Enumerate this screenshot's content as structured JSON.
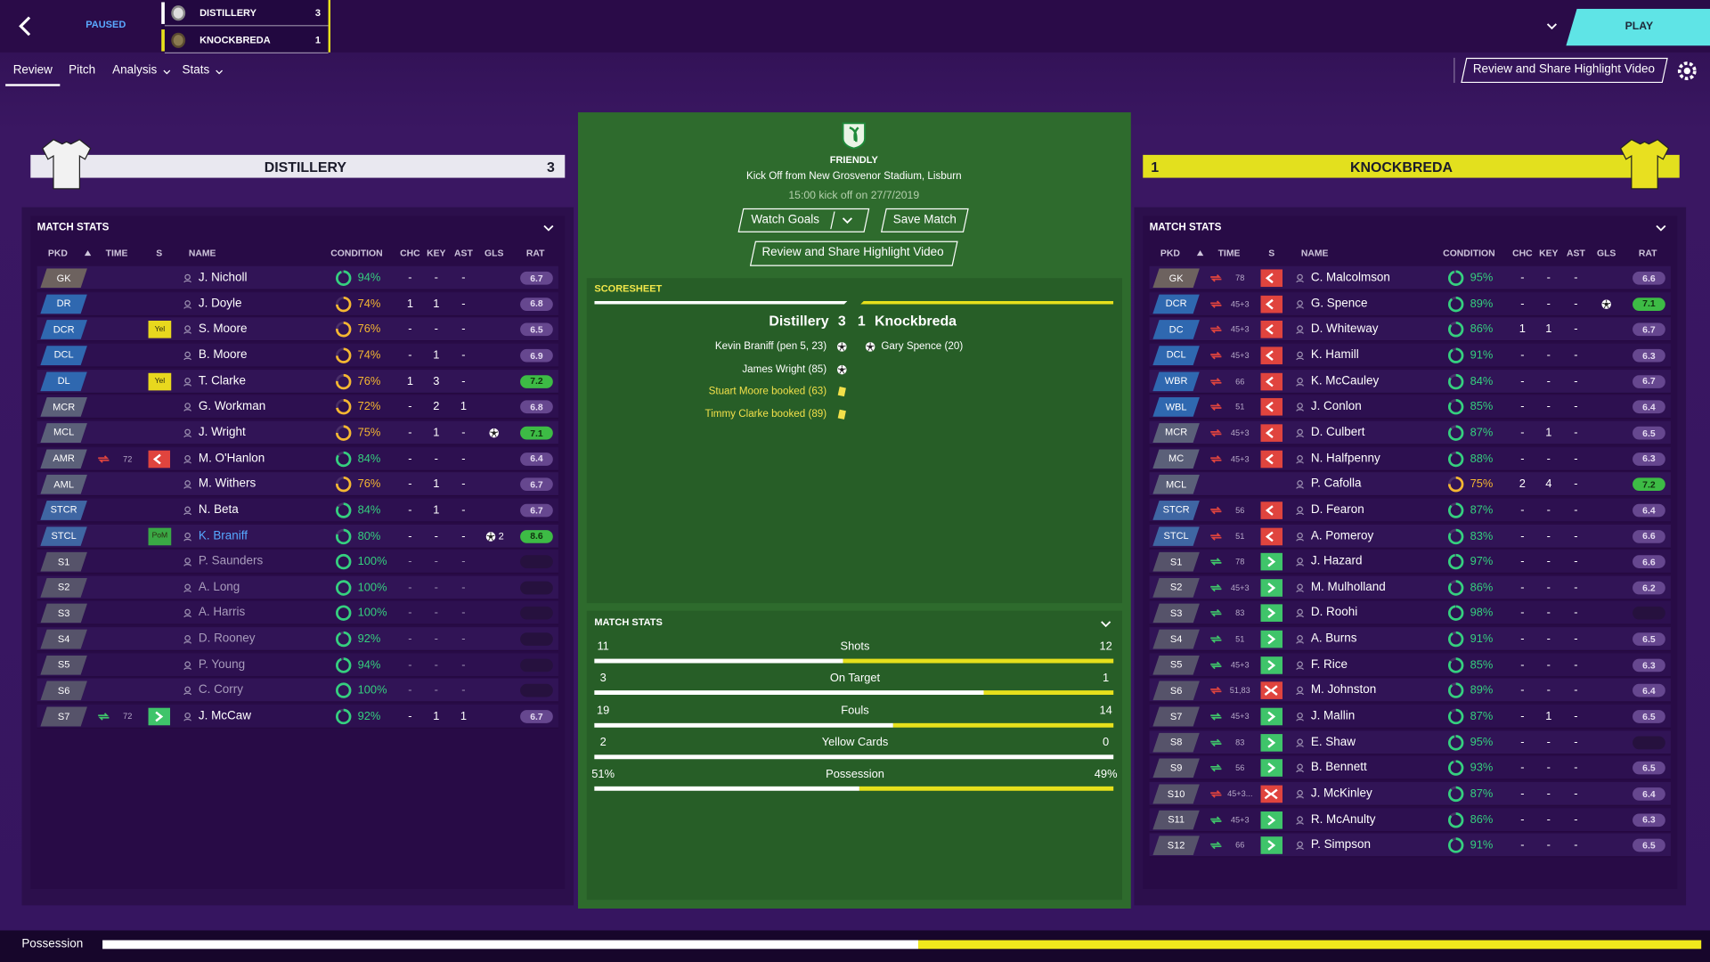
{
  "header": {
    "status": "PAUSED",
    "scoreboard": [
      {
        "team": "DISTILLERY",
        "score": 3
      },
      {
        "team": "KNOCKBREDA",
        "score": 1
      }
    ],
    "play": "PLAY",
    "tabs": [
      "Review",
      "Pitch",
      "Analysis",
      "Stats"
    ],
    "highlight_button": "Review and Share Highlight Video"
  },
  "columns": [
    "PKD",
    "TIME",
    "S",
    "NAME",
    "CONDITION",
    "CHC",
    "KEY",
    "AST",
    "GLS",
    "RAT"
  ],
  "home": {
    "team": "DISTILLERY",
    "score": 3,
    "panel_title": "MATCH STATS",
    "players": [
      {
        "pos": "GK",
        "name": "J. Nicholl",
        "cond": {
          "value": 94,
          "label": "94%"
        },
        "chc": "-",
        "key": "-",
        "ast": "-",
        "rat": 6.7
      },
      {
        "pos": "DR",
        "name": "J. Doyle",
        "cond": {
          "value": 74,
          "label": "74%"
        },
        "chc": 1,
        "key": 1,
        "ast": "-",
        "rat": 6.8
      },
      {
        "pos": "DCR",
        "badge": "Yel",
        "name": "S. Moore",
        "cond": {
          "value": 76,
          "label": "76%"
        },
        "chc": "-",
        "key": "-",
        "ast": "-",
        "rat": 6.5
      },
      {
        "pos": "DCL",
        "name": "B. Moore",
        "cond": {
          "value": 74,
          "label": "74%"
        },
        "chc": "-",
        "key": 1,
        "ast": "-",
        "rat": 6.9
      },
      {
        "pos": "DL",
        "badge": "Yel",
        "name": "T. Clarke",
        "cond": {
          "value": 76,
          "label": "76%"
        },
        "chc": 1,
        "key": 3,
        "ast": "-",
        "rat": 7.2
      },
      {
        "pos": "MCR",
        "name": "G. Workman",
        "cond": {
          "value": 72,
          "label": "72%"
        },
        "chc": "-",
        "key": 2,
        "ast": 1,
        "rat": 6.8
      },
      {
        "pos": "MCL",
        "name": "J. Wright",
        "cond": {
          "value": 75,
          "label": "75%"
        },
        "chc": "-",
        "key": 1,
        "ast": "-",
        "goal": true,
        "rat": 7.1
      },
      {
        "pos": "AMR",
        "sub": "off",
        "time": "72",
        "name": "M. O'Hanlon",
        "cond": {
          "value": 84,
          "label": "84%"
        },
        "chc": "-",
        "key": "-",
        "ast": "-",
        "rat": 6.4
      },
      {
        "pos": "AML",
        "name": "M. Withers",
        "cond": {
          "value": 76,
          "label": "76%"
        },
        "chc": "-",
        "key": 1,
        "ast": "-",
        "rat": 6.7
      },
      {
        "pos": "STCR",
        "name": "N. Beta",
        "cond": {
          "value": 84,
          "label": "84%"
        },
        "chc": "-",
        "key": 1,
        "ast": "-",
        "rat": 6.7
      },
      {
        "pos": "STCL",
        "badge": "PoM",
        "name": "K. Braniff",
        "cond": {
          "value": 80,
          "label": "80%"
        },
        "chc": "-",
        "key": "-",
        "ast": "-",
        "goal": true,
        "gls": 2,
        "rat": 8.6
      },
      {
        "pos": "S1",
        "name": "P. Saunders",
        "cond": {
          "value": 100,
          "label": "100%"
        },
        "chc": "-",
        "key": "-",
        "ast": "-",
        "rat": null
      },
      {
        "pos": "S2",
        "name": "A. Long",
        "cond": {
          "value": 100,
          "label": "100%"
        },
        "chc": "-",
        "key": "-",
        "ast": "-",
        "rat": null
      },
      {
        "pos": "S3",
        "name": "A. Harris",
        "cond": {
          "value": 100,
          "label": "100%"
        },
        "chc": "-",
        "key": "-",
        "ast": "-",
        "rat": null
      },
      {
        "pos": "S4",
        "name": "D. Rooney",
        "cond": {
          "value": 92,
          "label": "92%"
        },
        "chc": "-",
        "key": "-",
        "ast": "-",
        "rat": null
      },
      {
        "pos": "S5",
        "name": "P. Young",
        "cond": {
          "value": 94,
          "label": "94%"
        },
        "chc": "-",
        "key": "-",
        "ast": "-",
        "rat": null
      },
      {
        "pos": "S6",
        "name": "C. Corry",
        "cond": {
          "value": 100,
          "label": "100%"
        },
        "chc": "-",
        "key": "-",
        "ast": "-",
        "rat": null
      },
      {
        "pos": "S7",
        "sub": "on",
        "time": "72",
        "name": "J. McCaw",
        "cond": {
          "value": 92,
          "label": "92%"
        },
        "chc": "-",
        "key": 1,
        "ast": 1,
        "rat": 6.7
      }
    ]
  },
  "away": {
    "team": "KNOCKBREDA",
    "score": 1,
    "panel_title": "MATCH STATS",
    "players": [
      {
        "pos": "GK",
        "sub": "off",
        "time": "78",
        "name": "C. Malcolmson",
        "cond": {
          "value": 95,
          "label": "95%"
        },
        "chc": "-",
        "key": "-",
        "ast": "-",
        "rat": 6.6
      },
      {
        "pos": "DCR",
        "sub": "off",
        "time": "45+3",
        "name": "G. Spence",
        "cond": {
          "value": 89,
          "label": "89%"
        },
        "chc": "-",
        "key": "-",
        "ast": "-",
        "goal": true,
        "rat": 7.1
      },
      {
        "pos": "DC",
        "sub": "off",
        "time": "45+3",
        "name": "D. Whiteway",
        "cond": {
          "value": 86,
          "label": "86%"
        },
        "chc": 1,
        "key": 1,
        "ast": "-",
        "rat": 6.7
      },
      {
        "pos": "DCL",
        "sub": "off",
        "time": "45+3",
        "name": "K. Hamill",
        "cond": {
          "value": 91,
          "label": "91%"
        },
        "chc": "-",
        "key": "-",
        "ast": "-",
        "rat": 6.3
      },
      {
        "pos": "WBR",
        "sub": "off",
        "time": "66",
        "name": "K. McCauley",
        "cond": {
          "value": 84,
          "label": "84%"
        },
        "chc": "-",
        "key": "-",
        "ast": "-",
        "rat": 6.7
      },
      {
        "pos": "WBL",
        "sub": "off",
        "time": "51",
        "name": "J. Conlon",
        "cond": {
          "value": 85,
          "label": "85%"
        },
        "chc": "-",
        "key": "-",
        "ast": "-",
        "rat": 6.4
      },
      {
        "pos": "MCR",
        "sub": "off",
        "time": "45+3",
        "name": "D. Culbert",
        "cond": {
          "value": 87,
          "label": "87%"
        },
        "chc": "-",
        "key": 1,
        "ast": "-",
        "rat": 6.5
      },
      {
        "pos": "MC",
        "sub": "off",
        "time": "45+3",
        "name": "N. Halfpenny",
        "cond": {
          "value": 88,
          "label": "88%"
        },
        "chc": "-",
        "key": "-",
        "ast": "-",
        "rat": 6.3
      },
      {
        "pos": "MCL",
        "name": "P. Cafolla",
        "cond": {
          "value": 75,
          "label": "75%"
        },
        "chc": 2,
        "key": 4,
        "ast": "-",
        "rat": 7.2
      },
      {
        "pos": "STCR",
        "sub": "off",
        "time": "56",
        "name": "D. Fearon",
        "cond": {
          "value": 87,
          "label": "87%"
        },
        "chc": "-",
        "key": "-",
        "ast": "-",
        "rat": 6.4
      },
      {
        "pos": "STCL",
        "sub": "off",
        "time": "51",
        "name": "A. Pomeroy",
        "cond": {
          "value": 83,
          "label": "83%"
        },
        "chc": "-",
        "key": "-",
        "ast": "-",
        "rat": 6.6
      },
      {
        "pos": "S1",
        "sub": "on",
        "time": "78",
        "name": "J. Hazard",
        "cond": {
          "value": 97,
          "label": "97%"
        },
        "chc": "-",
        "key": "-",
        "ast": "-",
        "rat": 6.6
      },
      {
        "pos": "S2",
        "sub": "on",
        "time": "45+3",
        "name": "M. Mulholland",
        "cond": {
          "value": 86,
          "label": "86%"
        },
        "chc": "-",
        "key": "-",
        "ast": "-",
        "rat": 6.2
      },
      {
        "pos": "S3",
        "sub": "on",
        "time": "83",
        "name": "D. Roohi",
        "cond": {
          "value": 98,
          "label": "98%"
        },
        "chc": "-",
        "key": "-",
        "ast": "-",
        "rat": null
      },
      {
        "pos": "S4",
        "sub": "on",
        "time": "51",
        "name": "A. Burns",
        "cond": {
          "value": 91,
          "label": "91%"
        },
        "chc": "-",
        "key": "-",
        "ast": "-",
        "rat": 6.5
      },
      {
        "pos": "S5",
        "sub": "on",
        "time": "45+3",
        "name": "F. Rice",
        "cond": {
          "value": 85,
          "label": "85%"
        },
        "chc": "-",
        "key": "-",
        "ast": "-",
        "rat": 6.3
      },
      {
        "pos": "S6",
        "sub": "both",
        "time": "51,83",
        "name": "M. Johnston",
        "cond": {
          "value": 89,
          "label": "89%"
        },
        "chc": "-",
        "key": "-",
        "ast": "-",
        "rat": 6.4
      },
      {
        "pos": "S7",
        "sub": "on",
        "time": "45+3",
        "name": "J. Mallin",
        "cond": {
          "value": 87,
          "label": "87%"
        },
        "chc": "-",
        "key": 1,
        "ast": "-",
        "rat": 6.5
      },
      {
        "pos": "S8",
        "sub": "on",
        "time": "83",
        "name": "E. Shaw",
        "cond": {
          "value": 95,
          "label": "95%"
        },
        "chc": "-",
        "key": "-",
        "ast": "-",
        "rat": null
      },
      {
        "pos": "S9",
        "sub": "on",
        "time": "56",
        "name": "B. Bennett",
        "cond": {
          "value": 93,
          "label": "93%"
        },
        "chc": "-",
        "key": "-",
        "ast": "-",
        "rat": 6.5
      },
      {
        "pos": "S10",
        "sub": "both",
        "time": "45+3...",
        "name": "J. McKinley",
        "cond": {
          "value": 87,
          "label": "87%"
        },
        "chc": "-",
        "key": "-",
        "ast": "-",
        "rat": 6.4
      },
      {
        "pos": "S11",
        "sub": "on",
        "time": "45+3",
        "name": "R. McAnulty",
        "cond": {
          "value": 86,
          "label": "86%"
        },
        "chc": "-",
        "key": "-",
        "ast": "-",
        "rat": 6.3
      },
      {
        "pos": "S12",
        "sub": "on",
        "time": "66",
        "name": "P. Simpson",
        "cond": {
          "value": 91,
          "label": "91%"
        },
        "chc": "-",
        "key": "-",
        "ast": "-",
        "rat": 6.5
      }
    ]
  },
  "match": {
    "competition": "FRIENDLY",
    "venue": "Kick Off from New Grosvenor Stadium, Lisburn",
    "kickoff": "15:00 kick off on 27/7/2019",
    "buttons": [
      "Watch Goals",
      "Save Match",
      "Review and Share Highlight Video"
    ],
    "scoresheet": {
      "title": "SCORESHEET",
      "home_team": "Distillery",
      "home_score": 3,
      "away_score": 1,
      "away_team": "Knockbreda",
      "home_events": [
        {
          "text": "Kevin Braniff (pen 5, 23)",
          "kind": "goal"
        },
        {
          "text": "James Wright (85)",
          "kind": "goal"
        },
        {
          "text": "Stuart Moore booked (63)",
          "kind": "booking"
        },
        {
          "text": "Timmy Clarke booked (89)",
          "kind": "booking"
        }
      ],
      "away_events": [
        {
          "text": "Gary Spence (20)",
          "kind": "goal"
        }
      ]
    },
    "stats": {
      "title": "MATCH STATS",
      "rows": [
        {
          "label": "Shots",
          "home": 11,
          "away": 12
        },
        {
          "label": "On Target",
          "home": 3,
          "away": 1
        },
        {
          "label": "Fouls",
          "home": 19,
          "away": 14
        },
        {
          "label": "Yellow Cards",
          "home": 2,
          "away": 0
        },
        {
          "label": "Possession",
          "home": {
            "value": 51,
            "label": "51%"
          },
          "away": {
            "value": 49,
            "label": "49%"
          }
        }
      ]
    }
  },
  "footer": {
    "label": "Possession"
  }
}
